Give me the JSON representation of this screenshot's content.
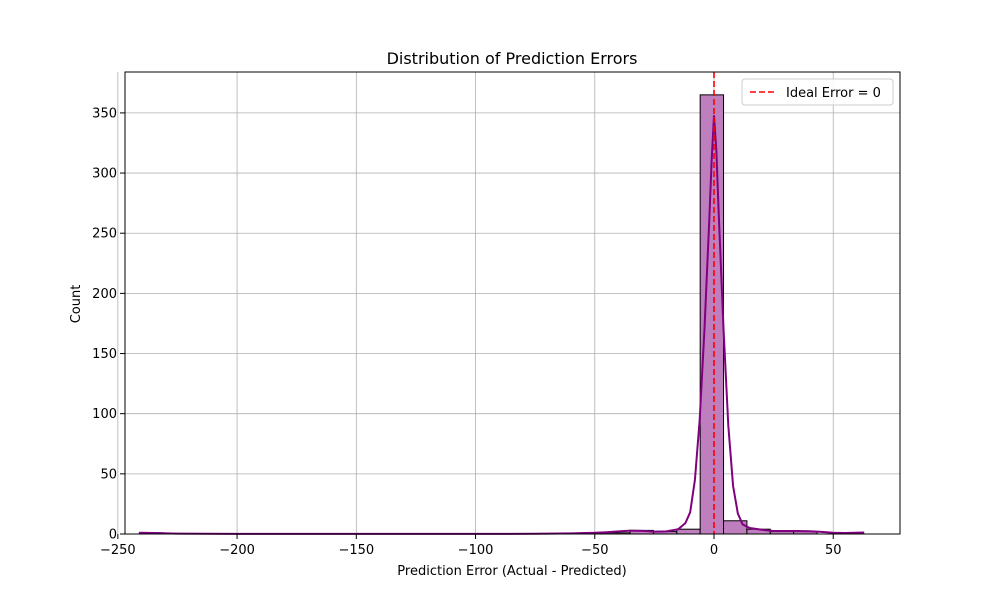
{
  "chart_data": {
    "type": "histogram",
    "title": "Distribution of Prediction Errors",
    "xlabel": "Prediction Error (Actual - Predicted)",
    "ylabel": "Count",
    "xlim": [
      -247,
      78
    ],
    "ylim": [
      0,
      384
    ],
    "xticks": [
      -250,
      -200,
      -150,
      -100,
      -50,
      0,
      50
    ],
    "xtick_labels": [
      "−250",
      "−200",
      "−150",
      "−100",
      "−50",
      "0",
      "50"
    ],
    "yticks": [
      0,
      50,
      100,
      150,
      200,
      250,
      300,
      350
    ],
    "ytick_labels": [
      "0",
      "50",
      "100",
      "150",
      "200",
      "250",
      "300",
      "350"
    ],
    "grid": true,
    "bins": [
      {
        "x0": -241.0,
        "x1": -231.2,
        "count": 1
      },
      {
        "x0": -231.2,
        "x1": -221.4,
        "count": 0
      },
      {
        "x0": -221.4,
        "x1": -211.6,
        "count": 0
      },
      {
        "x0": -211.6,
        "x1": -201.8,
        "count": 0
      },
      {
        "x0": -201.8,
        "x1": -192.0,
        "count": 0
      },
      {
        "x0": -192.0,
        "x1": -182.2,
        "count": 0
      },
      {
        "x0": -182.2,
        "x1": -172.4,
        "count": 0
      },
      {
        "x0": -172.4,
        "x1": -162.6,
        "count": 0
      },
      {
        "x0": -162.6,
        "x1": -152.8,
        "count": 0
      },
      {
        "x0": -152.8,
        "x1": -143.0,
        "count": 0
      },
      {
        "x0": -143.0,
        "x1": -133.2,
        "count": 0
      },
      {
        "x0": -133.2,
        "x1": -123.4,
        "count": 0
      },
      {
        "x0": -123.4,
        "x1": -113.6,
        "count": 0
      },
      {
        "x0": -113.6,
        "x1": -103.8,
        "count": 0
      },
      {
        "x0": -103.8,
        "x1": -94.0,
        "count": 0
      },
      {
        "x0": -94.0,
        "x1": -84.2,
        "count": 0
      },
      {
        "x0": -84.2,
        "x1": -74.4,
        "count": 0
      },
      {
        "x0": -74.4,
        "x1": -64.6,
        "count": 0
      },
      {
        "x0": -64.6,
        "x1": -54.8,
        "count": 0
      },
      {
        "x0": -54.8,
        "x1": -45.0,
        "count": 1
      },
      {
        "x0": -45.0,
        "x1": -35.2,
        "count": 1
      },
      {
        "x0": -35.2,
        "x1": -25.4,
        "count": 3
      },
      {
        "x0": -25.4,
        "x1": -15.6,
        "count": 2
      },
      {
        "x0": -15.6,
        "x1": -5.8,
        "count": 4
      },
      {
        "x0": -5.8,
        "x1": 4.0,
        "count": 365
      },
      {
        "x0": 4.0,
        "x1": 13.8,
        "count": 11
      },
      {
        "x0": 13.8,
        "x1": 23.6,
        "count": 4
      },
      {
        "x0": 23.6,
        "x1": 33.4,
        "count": 2
      },
      {
        "x0": 33.4,
        "x1": 43.2,
        "count": 2
      },
      {
        "x0": 43.2,
        "x1": 53.0,
        "count": 0
      },
      {
        "x0": 53.0,
        "x1": 63.0,
        "count": 0
      }
    ],
    "kde": [
      [
        -241,
        1.0
      ],
      [
        -235,
        0.8
      ],
      [
        -225,
        0.3
      ],
      [
        -200,
        0.1
      ],
      [
        -150,
        0.1
      ],
      [
        -100,
        0.1
      ],
      [
        -75,
        0.2
      ],
      [
        -60,
        0.5
      ],
      [
        -50,
        1.0
      ],
      [
        -45,
        1.5
      ],
      [
        -40,
        2.2
      ],
      [
        -35,
        2.8
      ],
      [
        -30,
        2.6
      ],
      [
        -25,
        2.0
      ],
      [
        -20,
        2.2
      ],
      [
        -15,
        4.0
      ],
      [
        -12,
        9
      ],
      [
        -10,
        18
      ],
      [
        -8,
        45
      ],
      [
        -6,
        95
      ],
      [
        -4,
        170
      ],
      [
        -2,
        260
      ],
      [
        -1,
        310
      ],
      [
        0,
        348
      ],
      [
        1,
        318
      ],
      [
        2,
        265
      ],
      [
        4,
        170
      ],
      [
        6,
        90
      ],
      [
        8,
        40
      ],
      [
        10,
        17
      ],
      [
        12,
        8
      ],
      [
        15,
        5
      ],
      [
        20,
        3.5
      ],
      [
        25,
        2.5
      ],
      [
        30,
        2.5
      ],
      [
        35,
        2.5
      ],
      [
        40,
        2.3
      ],
      [
        45,
        1.8
      ],
      [
        50,
        1.0
      ],
      [
        55,
        0.8
      ],
      [
        63,
        1.2
      ]
    ],
    "ideal_line": {
      "x": 0,
      "label": "Ideal Error = 0",
      "color": "#ff0000"
    },
    "legend_position": "top-right",
    "colors": {
      "bar_fill": "#bf7fbf",
      "bar_edge": "#000000",
      "kde_line": "#800080",
      "grid": "#b0b0b0"
    }
  }
}
